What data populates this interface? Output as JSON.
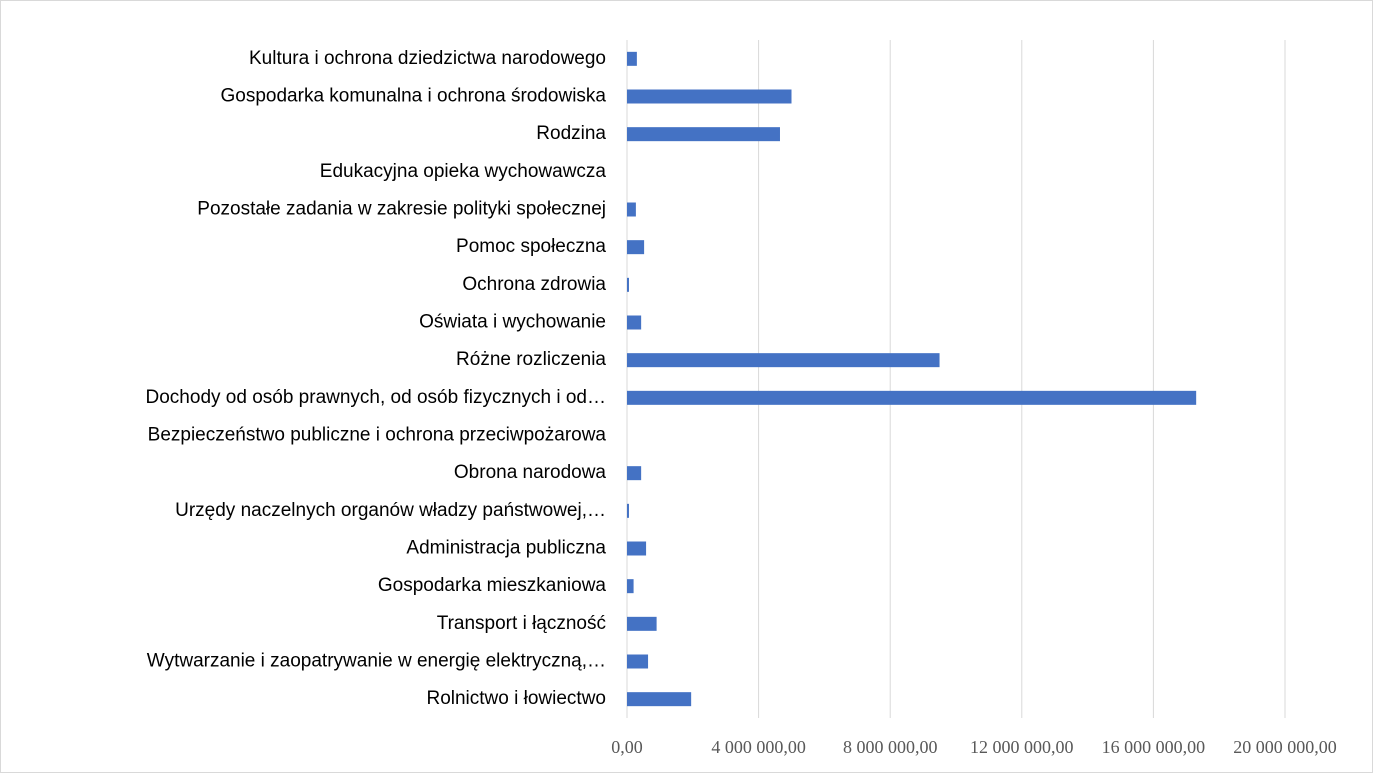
{
  "chart_data": {
    "type": "barh",
    "categories": [
      "Kultura i ochrona dziedzictwa narodowego",
      "Gospodarka komunalna i ochrona środowiska",
      "Rodzina",
      "Edukacyjna opieka wychowawcza",
      "Pozostałe zadania w zakresie polityki społecznej",
      "Pomoc społeczna",
      "Ochrona zdrowia",
      "Oświata i wychowanie",
      "Różne rozliczenia",
      "Dochody od osób prawnych, od osób fizycznych i od…",
      "Bezpieczeństwo publiczne i ochrona przeciwpożarowa",
      "Obrona narodowa",
      "Urzędy naczelnych organów władzy państwowej,…",
      "Administracja publiczna",
      "Gospodarka mieszkaniowa",
      "Transport i łączność",
      "Wytwarzanie i zaopatrywanie w energię elektryczną,…",
      "Rolnictwo i łowiectwo"
    ],
    "values": [
      300000,
      5000000,
      4650000,
      0,
      270000,
      520000,
      60000,
      430000,
      9500000,
      17300000,
      0,
      430000,
      60000,
      580000,
      200000,
      900000,
      640000,
      1950000
    ],
    "color": "#4472c4",
    "xlim": [
      0,
      20000000
    ],
    "xticks": [
      {
        "value": 0,
        "label": "0,00"
      },
      {
        "value": 4000000,
        "label": "4 000 000,00"
      },
      {
        "value": 8000000,
        "label": "8 000 000,00"
      },
      {
        "value": 12000000,
        "label": "12 000 000,00"
      },
      {
        "value": 16000000,
        "label": "16 000 000,00"
      },
      {
        "value": 20000000,
        "label": "20 000 000,00"
      }
    ],
    "grid": true
  }
}
